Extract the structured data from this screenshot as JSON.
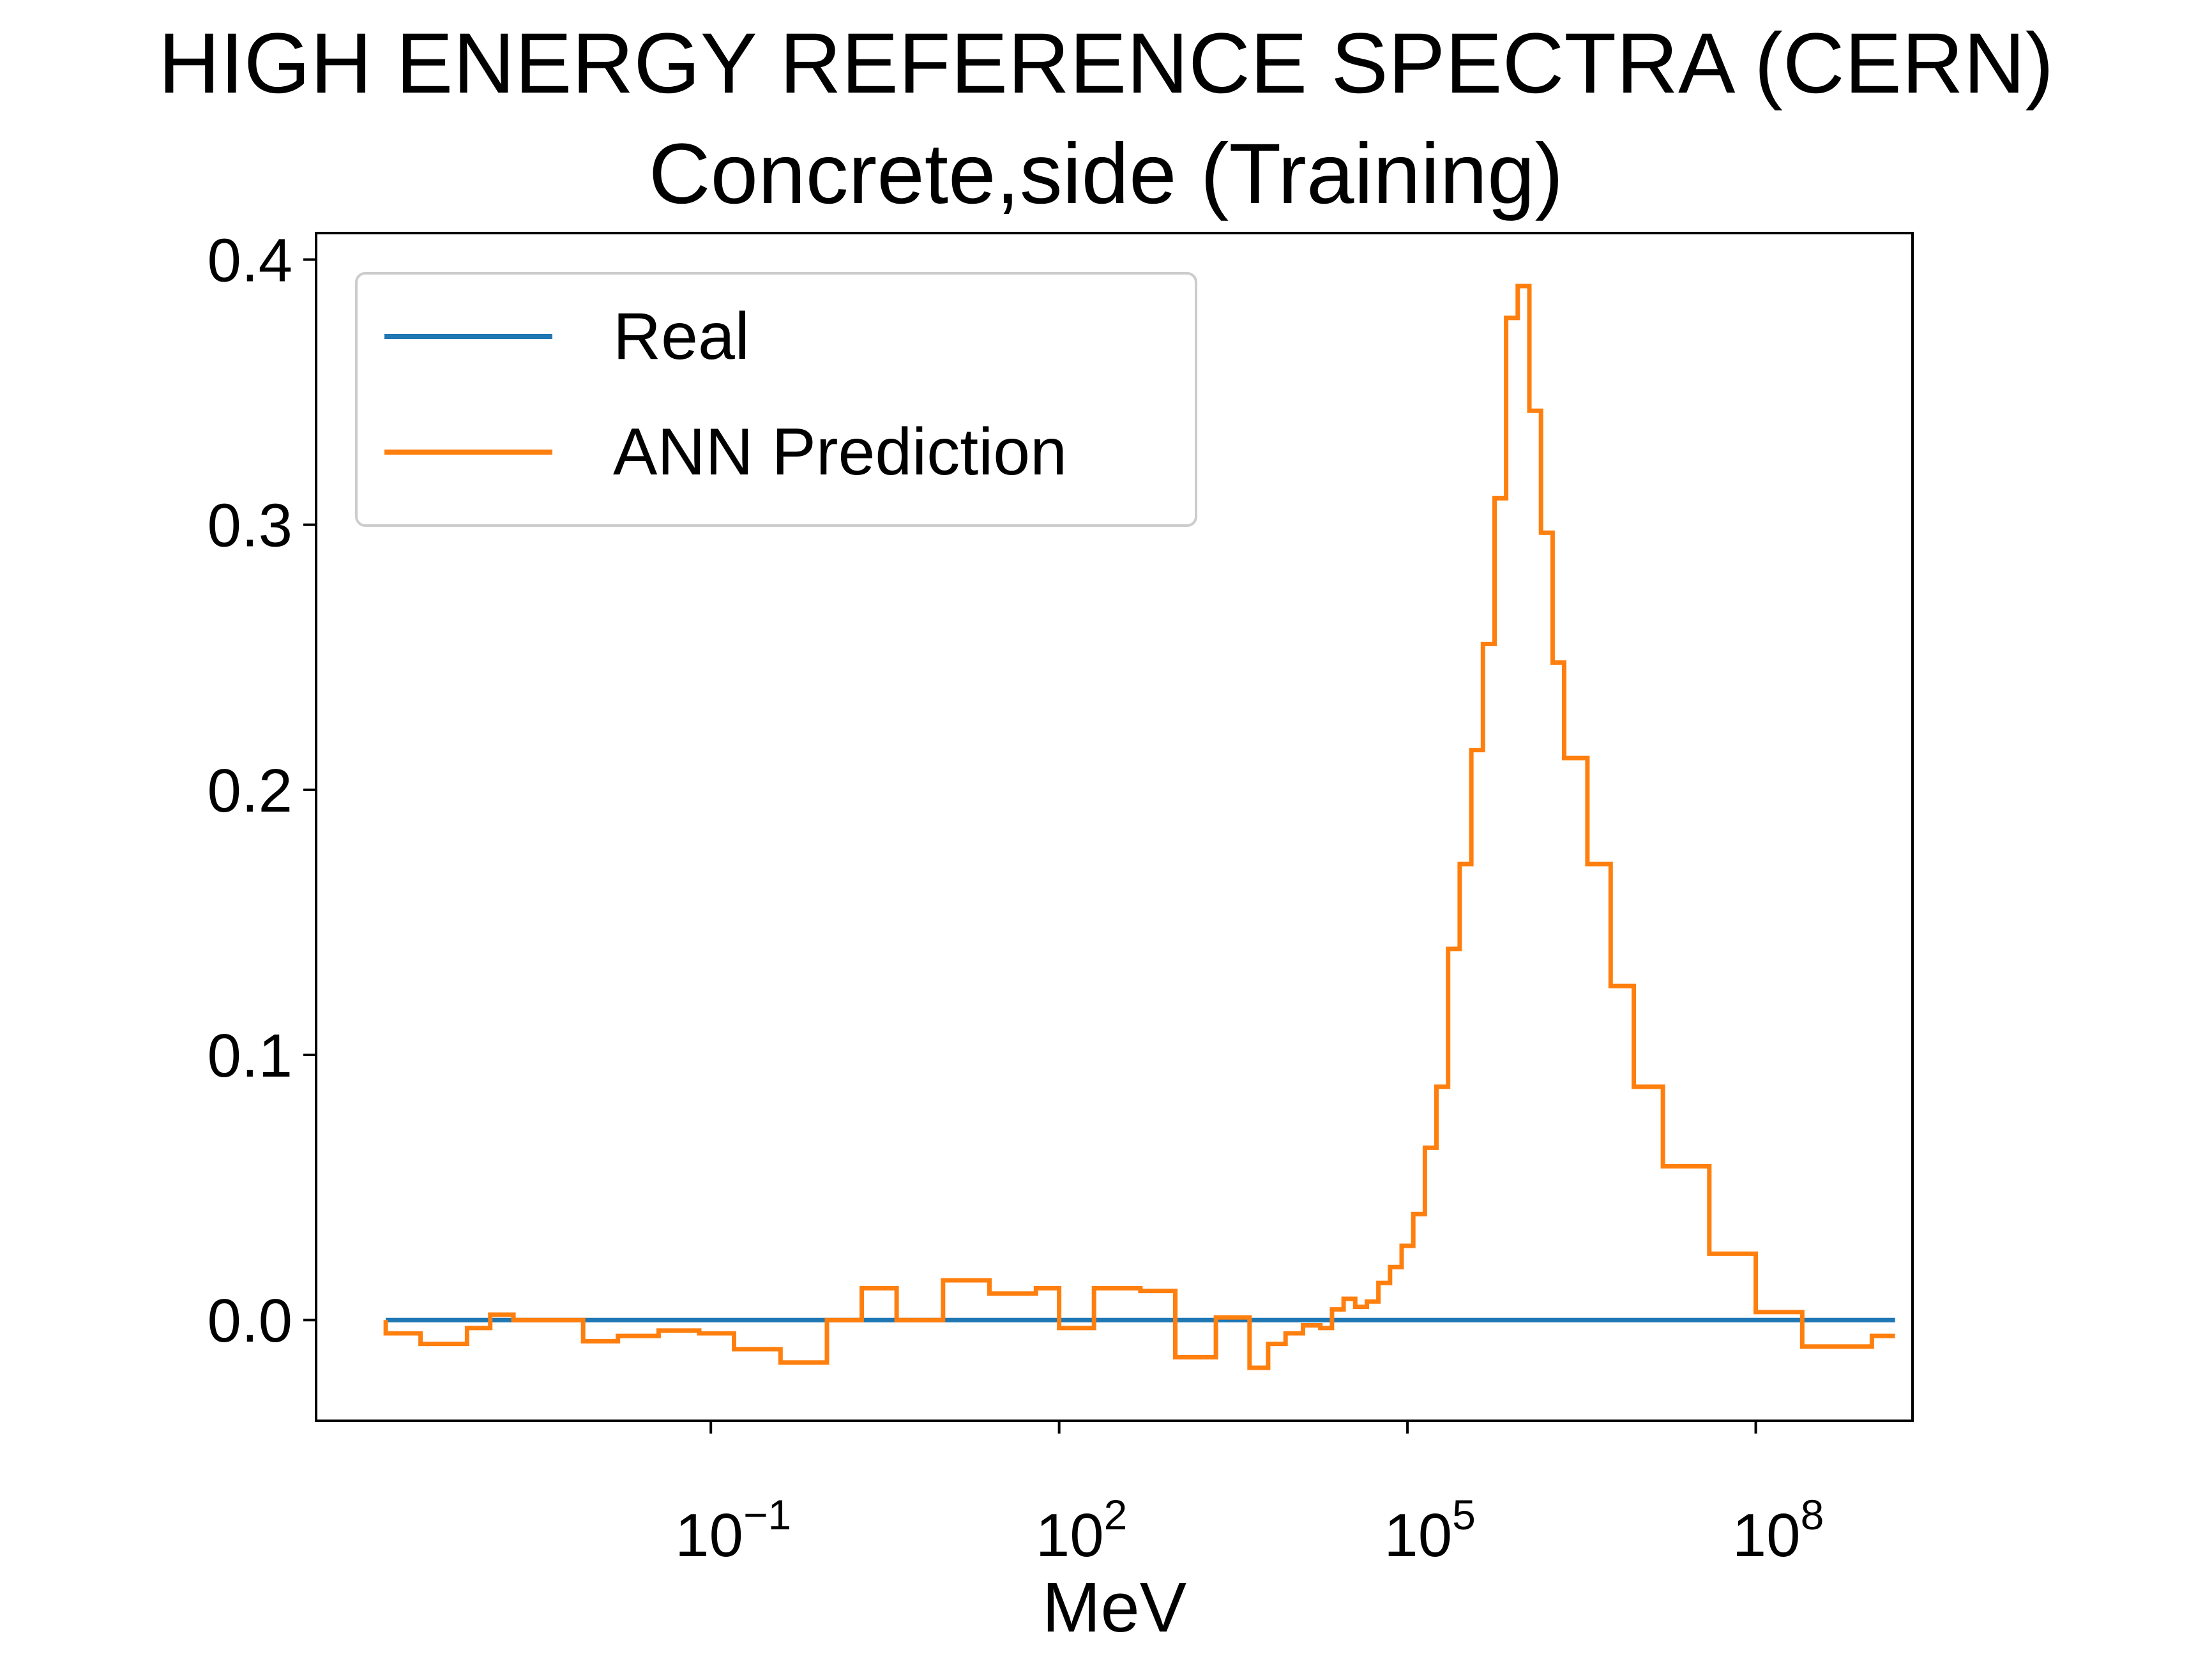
{
  "chart_data": {
    "type": "line",
    "title": "HIGH ENERGY REFERENCE SPECTRA (CERN)",
    "subtitle": "Concrete,side (Training)",
    "xlabel": "MeV",
    "ylabel": "",
    "xscale": "log",
    "xlim_log10": [
      -4.4,
      9.35
    ],
    "ylim": [
      -0.038,
      0.41
    ],
    "x_ticks": [
      {
        "base": "10",
        "exp": "−1",
        "log10": -1
      },
      {
        "base": "10",
        "exp": "2",
        "log10": 2
      },
      {
        "base": "10",
        "exp": "5",
        "log10": 5
      },
      {
        "base": "10",
        "exp": "8",
        "log10": 8
      }
    ],
    "y_ticks": [
      {
        "label": "0.0",
        "value": 0.0
      },
      {
        "label": "0.1",
        "value": 0.1
      },
      {
        "label": "0.2",
        "value": 0.2
      },
      {
        "label": "0.3",
        "value": 0.3
      },
      {
        "label": "0.4",
        "value": 0.4
      }
    ],
    "grid": false,
    "legend_position": "top-left",
    "drawstyle": "steps-pre",
    "bin_edges_log10": [
      -3.8,
      -3.13,
      -2.45,
      -1.77,
      -1.1,
      -0.42,
      0.26,
      0.94,
      1.61,
      2.29,
      2.97,
      3.64,
      4.0,
      4.15,
      4.3,
      4.45,
      4.6,
      4.75,
      4.9,
      5.05,
      5.2,
      5.35,
      5.5,
      5.6,
      5.7,
      5.8,
      5.9,
      6.0,
      6.1,
      6.2,
      6.3,
      6.4,
      6.5,
      6.6,
      6.7,
      6.8,
      6.9,
      7.0,
      7.2,
      7.4,
      7.6,
      7.8,
      8.0,
      8.2,
      8.4,
      8.6,
      8.8,
      9.0,
      9.2
    ],
    "series": [
      {
        "name": "Real",
        "color": "#1f77b4",
        "x_log10": [
          -3.8,
          9.2
        ],
        "y": [
          0.0,
          0.0
        ]
      },
      {
        "name": "ANN Prediction",
        "color": "#ff7f0e",
        "x_log10": [
          -3.8,
          -3.8,
          -3.5,
          -3.3,
          -3.1,
          -2.9,
          -2.7,
          -2.45,
          -2.1,
          -1.8,
          -1.45,
          -1.1,
          -0.8,
          -0.4,
          0.0,
          0.3,
          0.6,
          1.0,
          1.4,
          1.8,
          2.0,
          2.3,
          2.7,
          3.0,
          3.35,
          3.64,
          3.8,
          3.95,
          4.1,
          4.25,
          4.35,
          4.45,
          4.55,
          4.65,
          4.75,
          4.85,
          4.95,
          5.05,
          5.15,
          5.25,
          5.35,
          5.45,
          5.55,
          5.65,
          5.75,
          5.85,
          5.95,
          6.05,
          6.15,
          6.25,
          6.35,
          6.45,
          6.55,
          6.65,
          6.75,
          6.85,
          6.95,
          7.05,
          7.2,
          7.4,
          7.6,
          7.8,
          8.0,
          8.2,
          8.4,
          8.6,
          8.8,
          9.0,
          9.2
        ],
        "y": [
          0.0,
          -0.005,
          -0.005,
          -0.009,
          -0.009,
          -0.003,
          0.002,
          0.0,
          0.0,
          -0.008,
          -0.006,
          -0.004,
          -0.005,
          -0.011,
          -0.016,
          0.0,
          0.012,
          0.0,
          0.015,
          0.01,
          0.012,
          -0.003,
          0.012,
          0.011,
          -0.014,
          0.001,
          -0.018,
          -0.009,
          -0.005,
          -0.002,
          -0.003,
          0.004,
          0.008,
          0.005,
          0.007,
          0.014,
          0.02,
          0.028,
          0.04,
          0.065,
          0.088,
          0.14,
          0.172,
          0.215,
          0.255,
          0.31,
          0.378,
          0.39,
          0.343,
          0.297,
          0.248,
          0.212,
          0.212,
          0.172,
          0.172,
          0.126,
          0.126,
          0.088,
          0.088,
          0.058,
          0.058,
          0.025,
          0.025,
          0.003,
          0.003,
          -0.01,
          -0.01,
          -0.01,
          -0.006
        ]
      }
    ]
  }
}
